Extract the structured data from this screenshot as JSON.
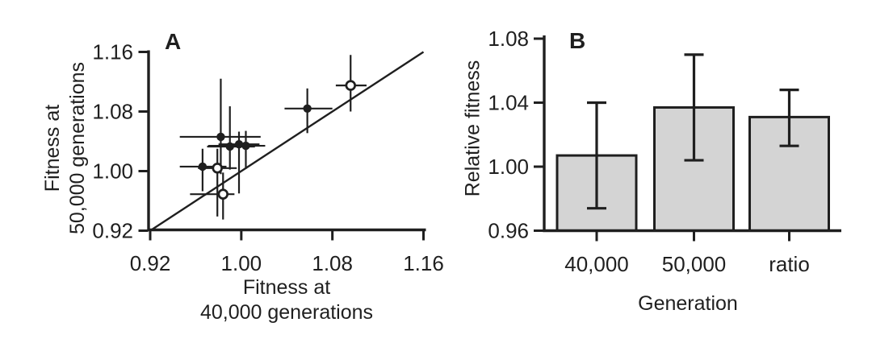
{
  "figure": {
    "background": "#ffffff",
    "ink": "#1f1f1f"
  },
  "chart_data": [
    {
      "type": "scatter",
      "panel_label": "A",
      "xlabel_lines": [
        "Fitness at",
        "40,000 generations"
      ],
      "ylabel_lines": [
        "Fitness at",
        "50,000 generations"
      ],
      "xlim": [
        0.92,
        1.16
      ],
      "ylim": [
        0.92,
        1.16
      ],
      "xtick_labels": [
        "0.92",
        "1.00",
        "1.08",
        "1.16"
      ],
      "ytick_labels": [
        "0.92",
        "1.00",
        "1.08",
        "1.16"
      ],
      "grid": false,
      "reference_line": {
        "type": "identity",
        "x": [
          0.92,
          1.16
        ],
        "y": [
          0.92,
          1.16
        ]
      },
      "error_bar_style": "x and y bars, no caps",
      "series": [
        {
          "name": "filled circles",
          "marker": "filled-circle",
          "points": [
            {
              "x": 0.982,
              "y": 1.046,
              "x_lo": 0.946,
              "x_hi": 1.017,
              "y_lo": 0.996,
              "y_hi": 1.124
            },
            {
              "x": 0.99,
              "y": 1.033,
              "x_lo": 0.97,
              "x_hi": 1.012,
              "y_lo": 1.002,
              "y_hi": 1.087
            },
            {
              "x": 0.998,
              "y": 1.036,
              "x_lo": 0.98,
              "x_hi": 1.016,
              "y_lo": 0.97,
              "y_hi": 1.053
            },
            {
              "x": 1.004,
              "y": 1.034,
              "x_lo": 0.971,
              "x_hi": 1.021,
              "y_lo": 1.003,
              "y_hi": 1.054
            },
            {
              "x": 0.966,
              "y": 1.006,
              "x_lo": 0.946,
              "x_hi": 0.987,
              "y_lo": 0.973,
              "y_hi": 1.03
            },
            {
              "x": 1.058,
              "y": 1.084,
              "x_lo": 1.038,
              "x_hi": 1.08,
              "y_lo": 1.051,
              "y_hi": 1.111
            }
          ]
        },
        {
          "name": "open circles",
          "marker": "open-circle",
          "points": [
            {
              "x": 0.979,
              "y": 1.004,
              "x_lo": 0.962,
              "x_hi": 0.996,
              "y_lo": 0.939,
              "y_hi": 1.03
            },
            {
              "x": 0.984,
              "y": 0.969,
              "x_lo": 0.955,
              "x_hi": 0.994,
              "y_lo": 0.935,
              "y_hi": 0.998
            },
            {
              "x": 1.096,
              "y": 1.115,
              "x_lo": 1.083,
              "x_hi": 1.11,
              "y_lo": 1.08,
              "y_hi": 1.156
            }
          ]
        }
      ]
    },
    {
      "type": "bar",
      "panel_label": "B",
      "xlabel": "Generation",
      "ylabel": "Relative fitness",
      "categories": [
        "40,000",
        "50,000",
        "ratio"
      ],
      "values": [
        1.007,
        1.037,
        1.031
      ],
      "error_low": [
        0.974,
        1.004,
        1.013
      ],
      "error_high": [
        1.04,
        1.07,
        1.048
      ],
      "ylim": [
        0.96,
        1.08
      ],
      "ytick_labels": [
        "0.96",
        "1.00",
        "1.04",
        "1.08"
      ],
      "grid": false,
      "bar_fill": "#d4d4d4",
      "error_bar_style": "vertical bars with caps"
    }
  ]
}
